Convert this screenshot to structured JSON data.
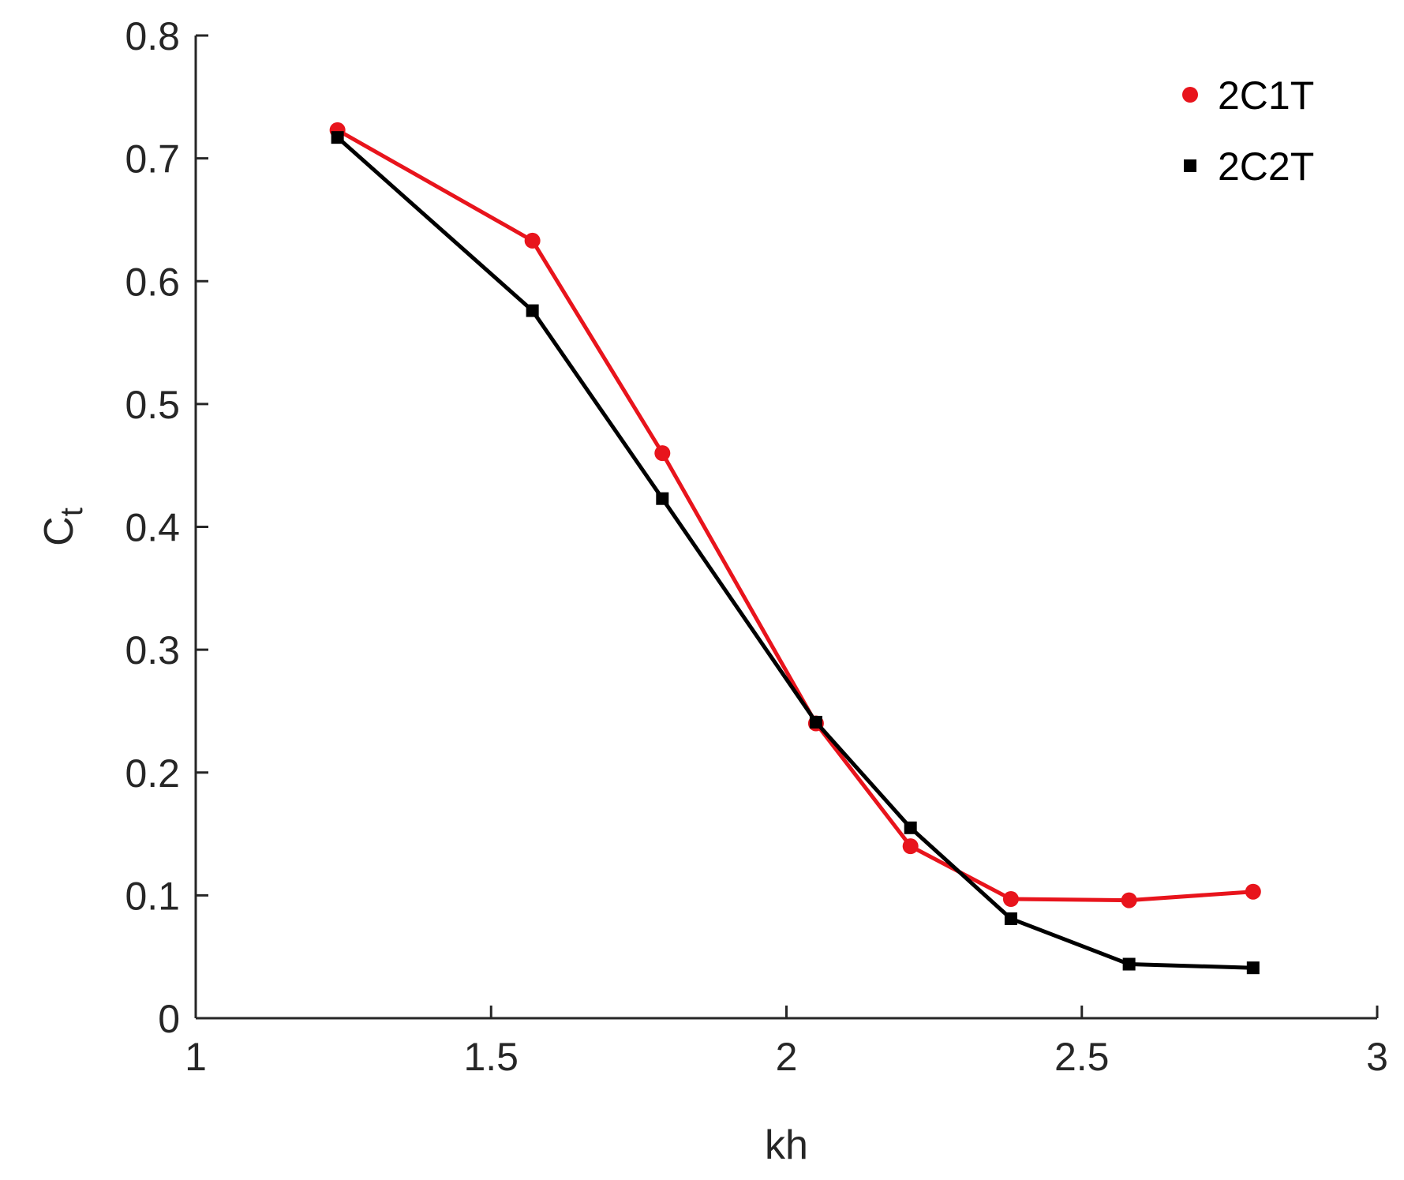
{
  "chart_data": {
    "type": "line",
    "xlabel": "kh",
    "ylabel_main": "C",
    "ylabel_sub": "t",
    "xlim": [
      1,
      3
    ],
    "ylim": [
      0,
      0.8
    ],
    "xticks": [
      1,
      1.5,
      2,
      2.5,
      3
    ],
    "xtick_labels": [
      "1",
      "1.5",
      "2",
      "2.5",
      "3"
    ],
    "yticks": [
      0,
      0.1,
      0.2,
      0.3,
      0.4,
      0.5,
      0.6,
      0.7,
      0.8
    ],
    "ytick_labels": [
      "0",
      "0.1",
      "0.2",
      "0.3",
      "0.4",
      "0.5",
      "0.6",
      "0.7",
      "0.8"
    ],
    "grid": false,
    "legend_position": "top-right",
    "series": [
      {
        "name": "2C1T",
        "color": "#e8141c",
        "marker": "circle",
        "x": [
          1.24,
          1.57,
          1.79,
          2.05,
          2.21,
          2.38,
          2.58,
          2.79
        ],
        "y": [
          0.723,
          0.633,
          0.46,
          0.24,
          0.14,
          0.097,
          0.096,
          0.103
        ]
      },
      {
        "name": "2C2T",
        "color": "#000000",
        "marker": "square",
        "x": [
          1.24,
          1.57,
          1.79,
          2.05,
          2.21,
          2.38,
          2.58,
          2.79
        ],
        "y": [
          0.717,
          0.576,
          0.423,
          0.241,
          0.155,
          0.081,
          0.044,
          0.041
        ]
      }
    ]
  }
}
